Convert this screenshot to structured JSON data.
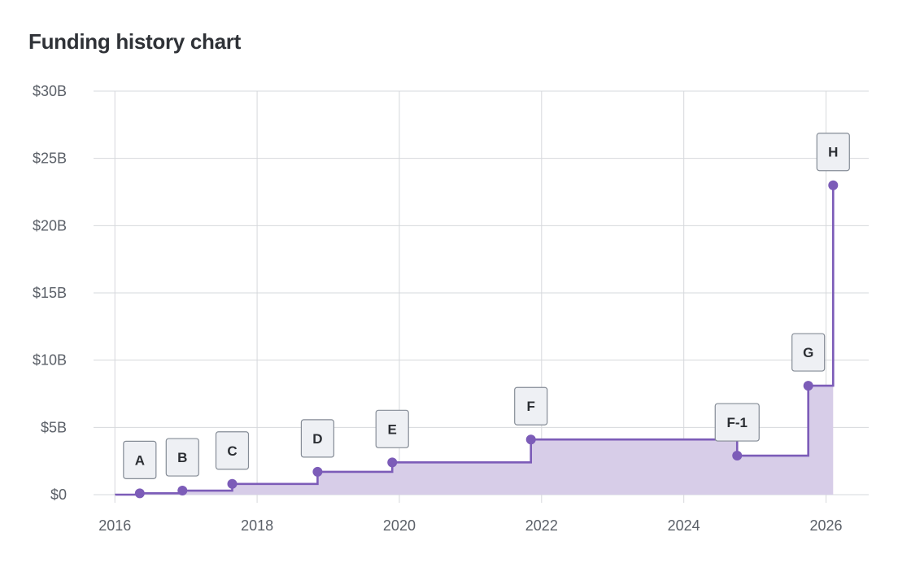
{
  "page": {
    "title": "Funding history chart"
  },
  "colors": {
    "line": "#7c5cb8",
    "area": "#d7cde8",
    "grid": "#d6d8dc",
    "badge_fill": "#eef0f4",
    "badge_stroke": "#858c96",
    "text": "#2f3237",
    "tick_text": "#5b6068"
  },
  "chart_data": {
    "type": "area",
    "title": "Funding history chart",
    "xlabel": "",
    "ylabel": "",
    "xlim": [
      2015.7,
      2026.6
    ],
    "ylim": [
      0,
      30
    ],
    "x_ticks": [
      2016,
      2018,
      2020,
      2022,
      2024,
      2026
    ],
    "x_tick_labels": [
      "2016",
      "2018",
      "2020",
      "2022",
      "2024",
      "2026"
    ],
    "y_ticks": [
      0,
      5,
      10,
      15,
      20,
      25,
      30
    ],
    "y_tick_labels": [
      "$0",
      "$5B",
      "$10B",
      "$15B",
      "$20B",
      "$25B",
      "$30B"
    ],
    "grid": true,
    "legend": "none",
    "step_line": true,
    "start_x": 2016.0,
    "end_x": 2026.1,
    "series": [
      {
        "points": [
          {
            "label": "A",
            "x": 2016.35,
            "y": 0.1
          },
          {
            "label": "B",
            "x": 2016.95,
            "y": 0.3
          },
          {
            "label": "C",
            "x": 2017.65,
            "y": 0.8
          },
          {
            "label": "D",
            "x": 2018.85,
            "y": 1.7
          },
          {
            "label": "E",
            "x": 2019.9,
            "y": 2.4
          },
          {
            "label": "F",
            "x": 2021.85,
            "y": 4.1
          },
          {
            "label": "F-1",
            "x": 2024.75,
            "y": 2.9
          },
          {
            "label": "G",
            "x": 2025.75,
            "y": 8.1
          },
          {
            "label": "H",
            "x": 2026.1,
            "y": 23.0
          }
        ]
      }
    ]
  }
}
